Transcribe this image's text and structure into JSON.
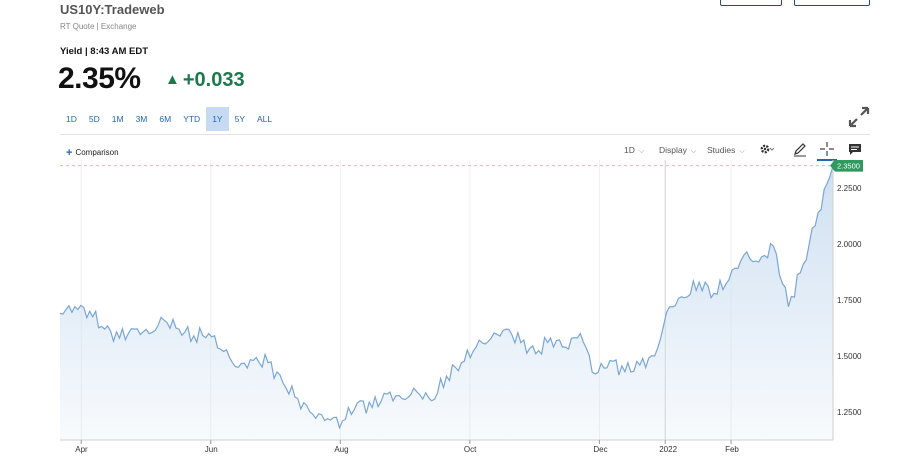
{
  "header": {
    "symbol": "US10Y:Tradeweb",
    "exchange": "RT Quote | Exchange",
    "yield_time": "Yield | 8:43 AM EDT",
    "price": "2.35%",
    "change": "+0.033",
    "change_color": "#1a7a4a"
  },
  "ranges": [
    "1D",
    "5D",
    "1M",
    "3M",
    "6M",
    "YTD",
    "1Y",
    "5Y",
    "ALL"
  ],
  "active_range": "1Y",
  "toolbar": {
    "comparison_label": "Comparison",
    "interval_label": "1D",
    "display_label": "Display",
    "studies_label": "Studies",
    "icons": [
      "gear-icon",
      "pencil-icon",
      "crosshair-icon",
      "comment-icon",
      "expand-icon"
    ]
  },
  "chart_data": {
    "type": "area",
    "x_labels": [
      "Apr",
      "Jun",
      "Aug",
      "Oct",
      "Dec",
      "2022",
      "Feb"
    ],
    "y_ticks": [
      "2.2500",
      "2.0000",
      "1.7500",
      "1.5000",
      "1.2500"
    ],
    "ylim": [
      1.125,
      2.375
    ],
    "last_value_label": "2.3500",
    "last_value": 2.35,
    "grid": "vertical",
    "line_color": "#7aa6d6",
    "fill_color": "#cfe0f2",
    "series": [
      {
        "x": [
          "2021-03-22",
          "2021-03-29",
          "2021-04-05",
          "2021-04-12",
          "2021-04-19",
          "2021-04-26",
          "2021-05-03",
          "2021-05-10",
          "2021-05-17",
          "2021-05-24",
          "2021-05-31",
          "2021-06-07",
          "2021-06-14",
          "2021-06-21",
          "2021-06-28",
          "2021-07-05",
          "2021-07-12",
          "2021-07-19",
          "2021-07-26",
          "2021-08-02",
          "2021-08-09",
          "2021-08-16",
          "2021-08-23",
          "2021-08-30",
          "2021-09-06",
          "2021-09-13",
          "2021-09-20",
          "2021-09-27",
          "2021-10-04",
          "2021-10-11",
          "2021-10-18",
          "2021-10-25",
          "2021-11-01",
          "2021-11-08",
          "2021-11-15",
          "2021-11-22",
          "2021-11-29",
          "2021-12-06",
          "2021-12-13",
          "2021-12-20",
          "2021-12-27",
          "2022-01-03",
          "2022-01-10",
          "2022-01-17",
          "2022-01-24",
          "2022-01-31",
          "2022-02-07",
          "2022-02-14",
          "2022-02-21",
          "2022-02-28",
          "2022-03-07",
          "2022-03-14",
          "2022-03-21"
        ],
        "y": [
          1.69,
          1.72,
          1.7,
          1.62,
          1.58,
          1.62,
          1.6,
          1.66,
          1.62,
          1.59,
          1.6,
          1.52,
          1.45,
          1.48,
          1.47,
          1.38,
          1.31,
          1.24,
          1.22,
          1.21,
          1.29,
          1.27,
          1.33,
          1.31,
          1.34,
          1.3,
          1.41,
          1.47,
          1.54,
          1.58,
          1.62,
          1.56,
          1.51,
          1.58,
          1.54,
          1.6,
          1.42,
          1.48,
          1.43,
          1.46,
          1.5,
          1.72,
          1.76,
          1.83,
          1.78,
          1.84,
          1.95,
          1.92,
          1.99,
          1.72,
          1.91,
          2.14,
          2.35
        ]
      }
    ]
  }
}
